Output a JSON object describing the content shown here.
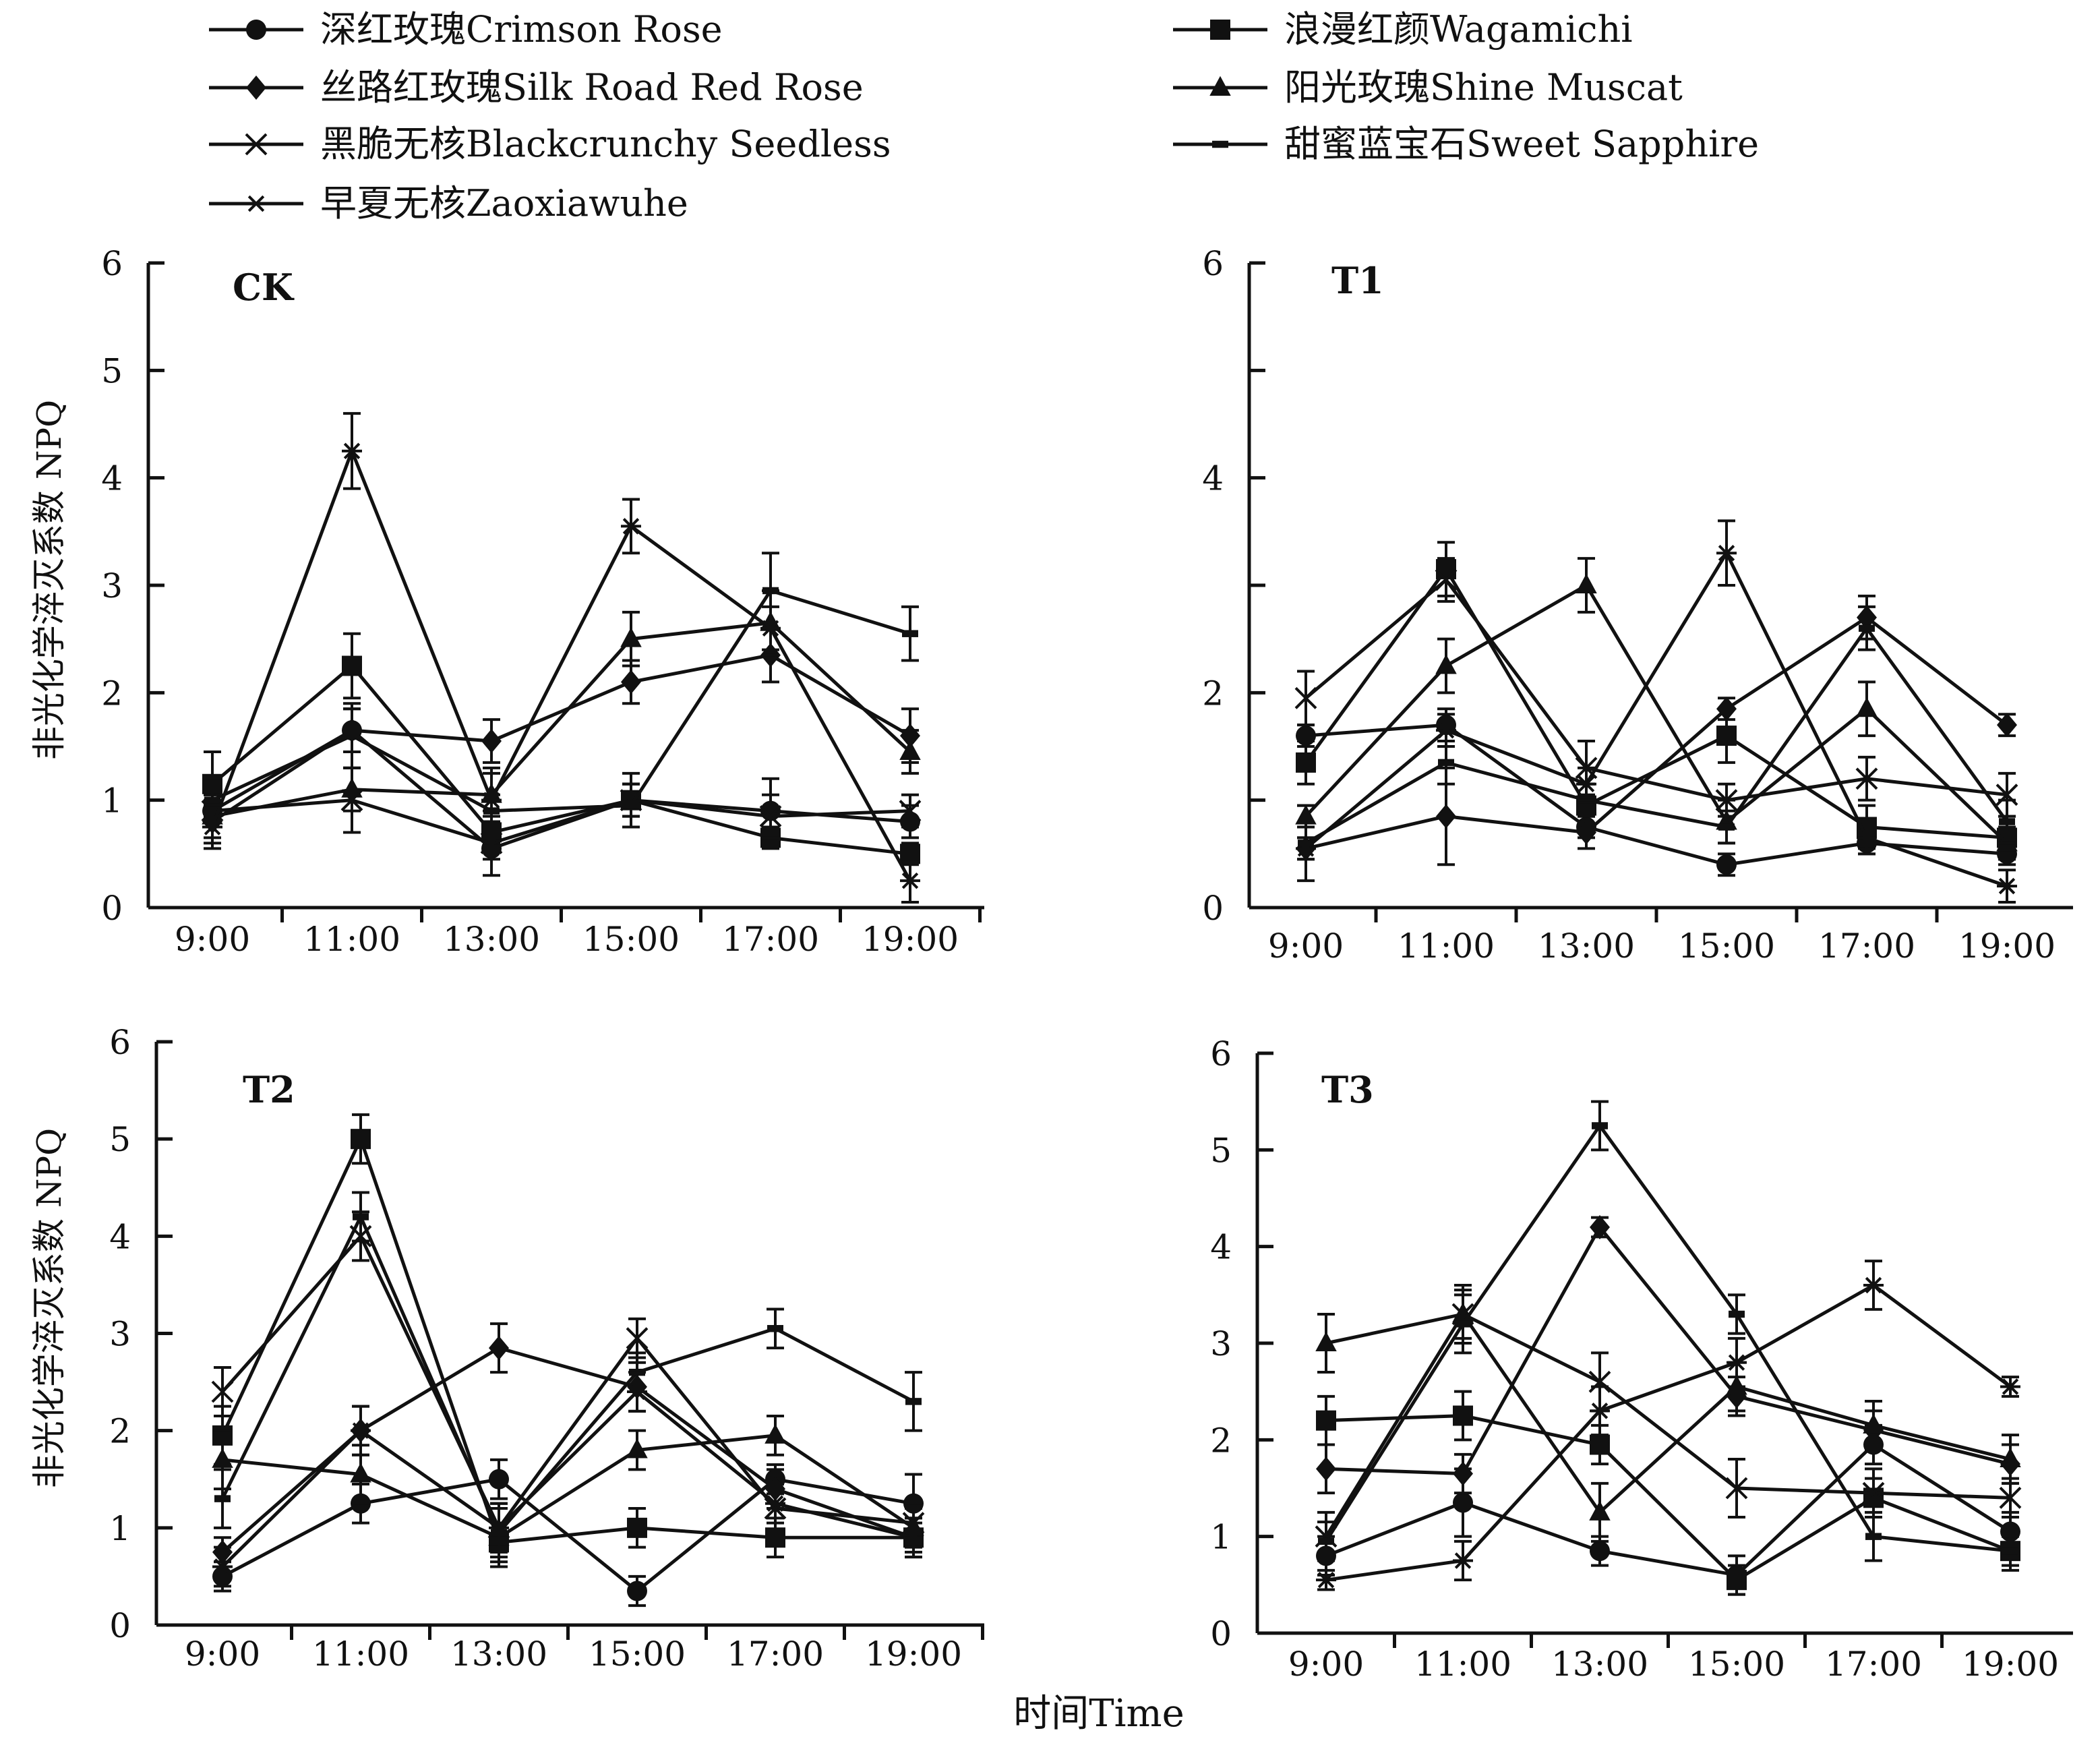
{
  "figure": {
    "xlabel": "时间Time",
    "ylabel": "非光化学淬灭系数 NPQ"
  },
  "legend": [
    {
      "label": "深红玫瑰Crimson Rose",
      "marker": "circle"
    },
    {
      "label": "浪漫红颜Wagamichi",
      "marker": "square"
    },
    {
      "label": "丝路红玫瑰Silk Road Red Rose",
      "marker": "diamond"
    },
    {
      "label": "阳光玫瑰Shine Muscat",
      "marker": "triangle"
    },
    {
      "label": "黑脆无核Blackcrunchy Seedless",
      "marker": "x"
    },
    {
      "label": "甜蜜蓝宝石Sweet Sapphire",
      "marker": "dash"
    },
    {
      "label": "早夏无核Zaoxiawuhe",
      "marker": "asterisk"
    }
  ],
  "chart_data": [
    {
      "type": "line",
      "title": "CK",
      "categories": [
        "9:00",
        "11:00",
        "13:00",
        "15:00",
        "17:00",
        "19:00"
      ],
      "ylim": [
        0,
        6
      ],
      "yticks": [
        "0",
        "1",
        "2",
        "3",
        "4",
        "5",
        "6"
      ],
      "series": [
        {
          "name": "深红玫瑰Crimson Rose",
          "values": [
            0.9,
            1.65,
            0.55,
            1.0,
            0.9,
            0.8
          ],
          "errors": [
            0.15,
            0.2,
            0.1,
            0.15,
            0.3,
            0.15
          ]
        },
        {
          "name": "浪漫红颜Wagamichi",
          "values": [
            1.15,
            2.25,
            0.7,
            1.0,
            0.65,
            0.5
          ],
          "errors": [
            0.3,
            0.3,
            0.1,
            0.15,
            0.1,
            0.1
          ]
        },
        {
          "name": "丝路红玫瑰Silk Road Red Rose",
          "values": [
            0.8,
            1.65,
            1.55,
            2.1,
            2.35,
            1.6
          ],
          "errors": [
            0.2,
            0.2,
            0.2,
            0.2,
            0.25,
            0.25
          ]
        },
        {
          "name": "阳光玫瑰Shine Muscat",
          "values": [
            0.85,
            1.1,
            1.05,
            2.5,
            2.65,
            1.45
          ],
          "errors": [
            0.2,
            0.2,
            0.2,
            0.25,
            0.3,
            0.2
          ]
        },
        {
          "name": "黑脆无核Blackcrunchy Seedless",
          "values": [
            0.9,
            1.0,
            0.6,
            1.0,
            0.85,
            0.9
          ],
          "errors": [
            0.15,
            0.3,
            0.3,
            0.25,
            0.2,
            0.15
          ]
        },
        {
          "name": "甜蜜蓝宝石Sweet Sapphire",
          "values": [
            1.0,
            1.6,
            0.9,
            0.95,
            2.95,
            2.55
          ],
          "errors": [
            0.2,
            0.3,
            0.15,
            0.2,
            0.35,
            0.25
          ]
        },
        {
          "name": "早夏无核Zaoxiawuhe",
          "values": [
            0.75,
            4.25,
            1.0,
            3.55,
            2.6,
            0.25
          ],
          "errors": [
            0.2,
            0.35,
            0.3,
            0.25,
            0.2,
            0.2
          ]
        }
      ]
    },
    {
      "type": "line",
      "title": "T1",
      "categories": [
        "9:00",
        "11:00",
        "13:00",
        "15:00",
        "17:00",
        "19:00"
      ],
      "ylim": [
        0,
        6
      ],
      "yticks": [
        "0",
        "",
        "2",
        "",
        "4",
        "",
        "6"
      ],
      "series": [
        {
          "name": "深红玫瑰Crimson Rose",
          "values": [
            1.6,
            1.7,
            0.75,
            0.4,
            0.6,
            0.5
          ],
          "errors": [
            0.1,
            0.15,
            0.1,
            0.1,
            0.1,
            0.1
          ]
        },
        {
          "name": "浪漫红颜Wagamichi",
          "values": [
            1.35,
            3.15,
            0.95,
            1.6,
            0.75,
            0.65
          ],
          "errors": [
            0.2,
            0.25,
            0.2,
            0.25,
            0.2,
            0.2
          ]
        },
        {
          "name": "丝路红玫瑰Silk Road Red Rose",
          "values": [
            0.55,
            0.85,
            0.7,
            1.85,
            2.7,
            1.7
          ],
          "errors": [
            0.1,
            0.45,
            0.15,
            0.1,
            0.2,
            0.1
          ]
        },
        {
          "name": "阳光玫瑰Shine Muscat",
          "values": [
            0.85,
            2.25,
            3.0,
            0.8,
            1.85,
            0.6
          ],
          "errors": [
            0.1,
            0.25,
            0.25,
            0.2,
            0.25,
            0.15
          ]
        },
        {
          "name": "黑脆无核Blackcrunchy Seedless",
          "values": [
            1.95,
            3.05,
            1.3,
            1.0,
            1.2,
            1.05
          ],
          "errors": [
            0.25,
            0.2,
            0.25,
            0.15,
            0.2,
            0.2
          ]
        },
        {
          "name": "甜蜜蓝宝石Sweet Sapphire",
          "values": [
            0.6,
            1.35,
            1.0,
            0.75,
            2.6,
            0.8
          ],
          "errors": [
            0.35,
            0.2,
            0.15,
            0.15,
            0.2,
            0.2
          ]
        },
        {
          "name": "早夏无核Zaoxiawuhe",
          "values": [
            0.55,
            1.65,
            1.15,
            3.3,
            0.65,
            0.2
          ],
          "errors": [
            0.1,
            0.15,
            0.15,
            0.3,
            0.15,
            0.15
          ]
        }
      ]
    },
    {
      "type": "line",
      "title": "T2",
      "categories": [
        "9:00",
        "11:00",
        "13:00",
        "15:00",
        "17:00",
        "19:00"
      ],
      "ylim": [
        0,
        6
      ],
      "yticks": [
        "0",
        "1",
        "2",
        "3",
        "4",
        "5",
        "6"
      ],
      "series": [
        {
          "name": "深红玫瑰Crimson Rose",
          "values": [
            0.5,
            1.25,
            1.5,
            0.35,
            1.5,
            1.25
          ],
          "errors": [
            0.15,
            0.2,
            0.2,
            0.15,
            0.15,
            0.3
          ]
        },
        {
          "name": "浪漫红颜Wagamichi",
          "values": [
            1.95,
            5.0,
            0.85,
            1.0,
            0.9,
            0.9
          ],
          "errors": [
            0.3,
            0.25,
            0.2,
            0.2,
            0.2,
            0.2
          ]
        },
        {
          "name": "丝路红玫瑰Silk Road Red Rose",
          "values": [
            0.75,
            2.0,
            2.85,
            2.45,
            1.4,
            0.9
          ],
          "errors": [
            0.15,
            0.25,
            0.25,
            0.25,
            0.2,
            0.15
          ]
        },
        {
          "name": "阳光玫瑰Shine Muscat",
          "values": [
            1.7,
            1.55,
            0.9,
            1.8,
            1.95,
            1.0
          ],
          "errors": [
            0.3,
            0.3,
            0.3,
            0.2,
            0.2,
            0.2
          ]
        },
        {
          "name": "黑脆无核Blackcrunchy Seedless",
          "values": [
            2.4,
            4.0,
            1.0,
            2.95,
            1.2,
            1.05
          ],
          "errors": [
            0.25,
            0.25,
            0.25,
            0.2,
            0.25,
            0.2
          ]
        },
        {
          "name": "甜蜜蓝宝石Sweet Sapphire",
          "values": [
            1.3,
            4.2,
            0.95,
            2.6,
            3.05,
            2.3
          ],
          "errors": [
            0.3,
            0.25,
            0.25,
            0.2,
            0.2,
            0.3
          ]
        },
        {
          "name": "早夏无核Zaoxiawuhe",
          "values": [
            0.6,
            2.0,
            1.0,
            2.4,
            1.25,
            0.9
          ],
          "errors": [
            0.2,
            0.25,
            0.25,
            0.2,
            0.2,
            0.2
          ]
        }
      ]
    },
    {
      "type": "line",
      "title": "T3",
      "categories": [
        "9:00",
        "11:00",
        "13:00",
        "15:00",
        "17:00",
        "19:00"
      ],
      "ylim": [
        0,
        6
      ],
      "yticks": [
        "0",
        "1",
        "2",
        "3",
        "4",
        "5",
        "6"
      ],
      "series": [
        {
          "name": "深红玫瑰Crimson Rose",
          "values": [
            0.8,
            1.35,
            0.85,
            0.6,
            1.95,
            1.05
          ],
          "errors": [
            0.2,
            0.35,
            0.15,
            0.2,
            0.2,
            0.2
          ]
        },
        {
          "name": "浪漫红颜Wagamichi",
          "values": [
            2.2,
            2.25,
            1.95,
            0.55,
            1.4,
            0.85
          ],
          "errors": [
            0.25,
            0.25,
            0.2,
            0.15,
            0.2,
            0.15
          ]
        },
        {
          "name": "丝路红玫瑰Silk Road Red Rose",
          "values": [
            1.7,
            1.65,
            4.2,
            2.45,
            2.1,
            1.75
          ],
          "errors": [
            0.25,
            0.2,
            0.1,
            0.2,
            0.2,
            0.2
          ]
        },
        {
          "name": "阳光玫瑰Shine Muscat",
          "values": [
            3.0,
            3.3,
            1.25,
            2.55,
            2.15,
            1.8
          ],
          "errors": [
            0.3,
            0.3,
            0.3,
            0.25,
            0.25,
            0.25
          ]
        },
        {
          "name": "黑脆无核Blackcrunchy Seedless",
          "values": [
            1.0,
            3.3,
            2.6,
            1.5,
            1.45,
            1.4
          ],
          "errors": [
            0.25,
            0.25,
            0.3,
            0.3,
            0.25,
            0.2
          ]
        },
        {
          "name": "甜蜜蓝宝石Sweet Sapphire",
          "values": [
            0.95,
            3.2,
            5.25,
            3.3,
            1.0,
            0.85
          ],
          "errors": [
            0.2,
            0.3,
            0.25,
            0.2,
            0.25,
            0.2
          ]
        },
        {
          "name": "早夏无核Zaoxiawuhe",
          "values": [
            0.55,
            0.75,
            2.3,
            2.8,
            3.6,
            2.55
          ],
          "errors": [
            0.1,
            0.2,
            0.25,
            0.25,
            0.25,
            0.1
          ]
        }
      ]
    }
  ]
}
